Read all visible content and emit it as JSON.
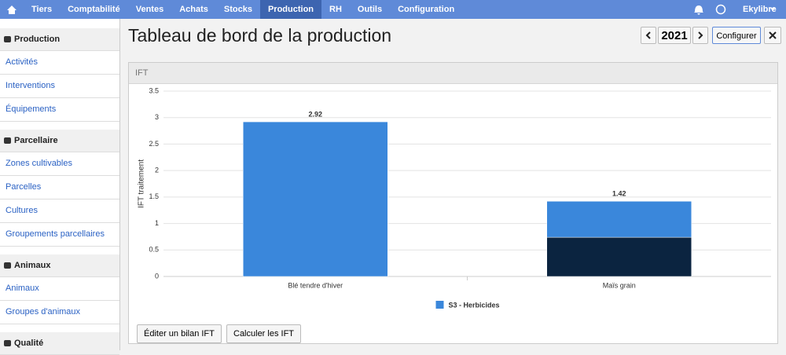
{
  "nav": {
    "items": [
      "Tiers",
      "Comptabilité",
      "Ventes",
      "Achats",
      "Stocks",
      "Production",
      "RH",
      "Outils",
      "Configuration"
    ],
    "active": 5,
    "user": "Ekylibre"
  },
  "sidebar": {
    "sections": [
      {
        "title": "Production",
        "links": [
          "Activités",
          "Interventions",
          "Équipements"
        ]
      },
      {
        "title": "Parcellaire",
        "links": [
          "Zones cultivables",
          "Parcelles",
          "Cultures",
          "Groupements parcellaires"
        ]
      },
      {
        "title": "Animaux",
        "links": [
          "Animaux",
          "Groupes d'animaux"
        ]
      },
      {
        "title": "Qualité",
        "links": []
      }
    ]
  },
  "header": {
    "title": "Tableau de bord de la production",
    "year": "2021",
    "configure": "Configurer"
  },
  "panel": {
    "title": "IFT",
    "buttons": [
      "Éditer un bilan IFT",
      "Calculer les IFT"
    ]
  },
  "chart_data": {
    "type": "bar",
    "stacked": true,
    "y_label": "IFT traitement",
    "categories": [
      "Blé tendre d'hiver",
      "Maïs grain"
    ],
    "series": [
      {
        "color": "#0b2440",
        "values": [
          null,
          0.74
        ]
      },
      {
        "name": "S3 - Herbicides",
        "color": "#3a87db",
        "values": [
          2.92,
          0.68
        ]
      }
    ],
    "totals": [
      2.92,
      1.42
    ],
    "ylim": [
      0,
      3.5
    ],
    "yticks": [
      0,
      0.5,
      1,
      1.5,
      2,
      2.5,
      3,
      3.5
    ],
    "grid": true
  }
}
